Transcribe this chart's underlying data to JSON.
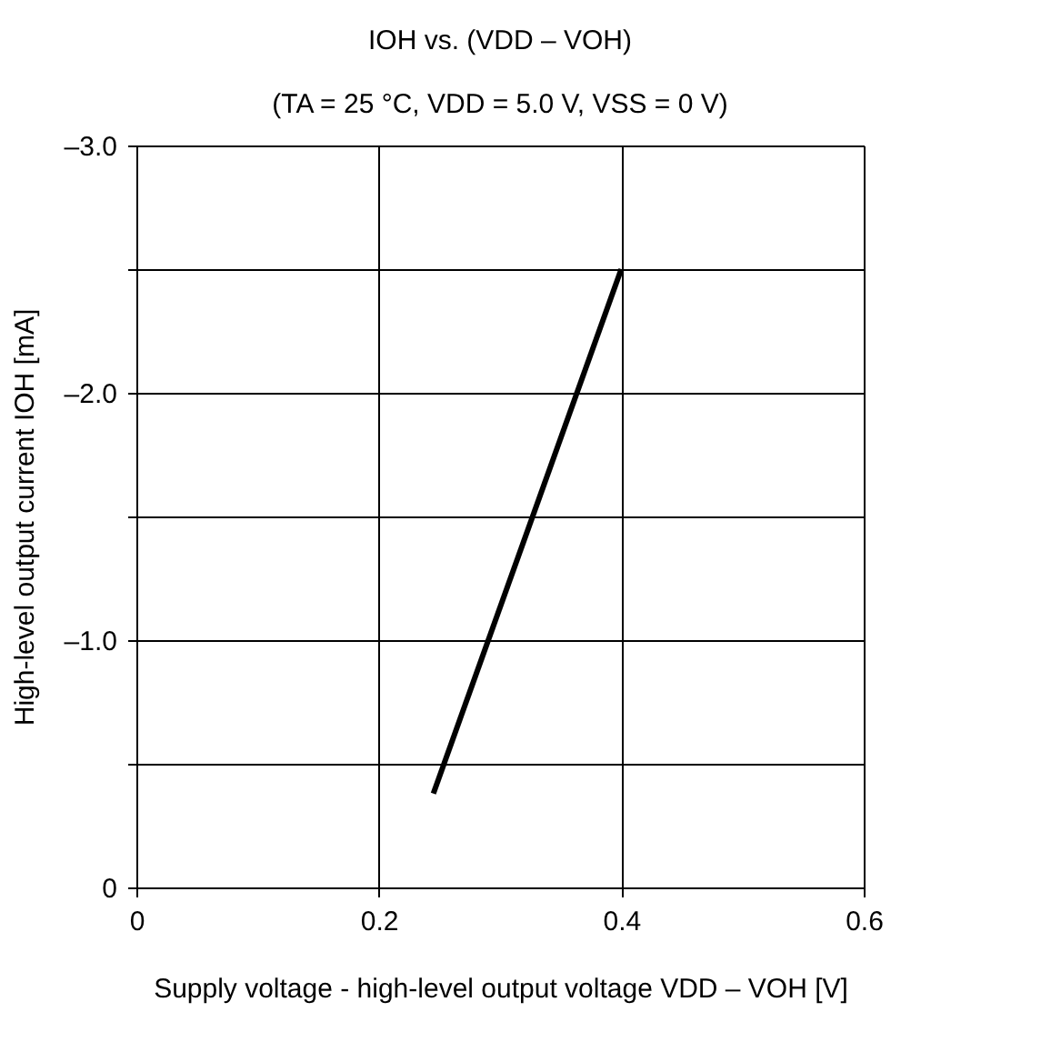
{
  "chart_data": {
    "type": "line",
    "title": "IOH vs. (VDD – VOH)",
    "subtitle": "(TA = 25 °C, VDD = 5.0 V, VSS = 0 V)",
    "xlabel": "Supply voltage - high-level output voltage VDD – VOH [V]",
    "ylabel": "High-level output current IOH [mA]",
    "series": [
      {
        "x": [
          0.245,
          0.4
        ],
        "values": [
          -0.38,
          -2.5
        ],
        "color": "#000000"
      }
    ],
    "xlim": [
      0,
      0.6
    ],
    "xticks": [
      0,
      0.2,
      0.4,
      0.6
    ],
    "ylim": [
      0,
      -3
    ],
    "yticks": [
      {
        "value": 0,
        "label": "0"
      },
      {
        "value": -0.5,
        "label": null
      },
      {
        "value": -1,
        "label": "–1.0"
      },
      {
        "value": -1.5,
        "label": null
      },
      {
        "value": -2,
        "label": "–2.0"
      },
      {
        "value": -2.5,
        "label": null
      },
      {
        "value": -3,
        "label": "–3.0"
      }
    ],
    "grid": true,
    "marker": "none",
    "line_style": "solid"
  }
}
